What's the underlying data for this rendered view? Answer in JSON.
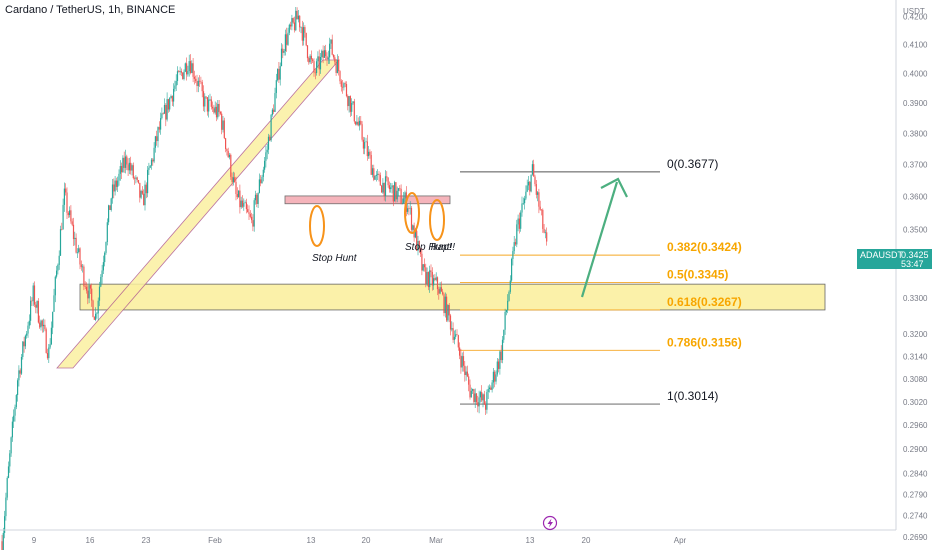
{
  "header": {
    "title": "Cardano / TetherUS, 1h, BINANCE"
  },
  "price_axis": {
    "currency": "USDT"
  },
  "last_price": {
    "symbol": "ADAUSDT",
    "value": "0.3425",
    "countdown": "53:47"
  },
  "colors": {
    "up": "#26a69a",
    "down": "#ef5350",
    "fib_label": "#f7a600",
    "fib_line": "#f5a623",
    "zone_fill": "#fbf0a0",
    "supply_fill": "#f4a7b0",
    "circle": "#f7931a",
    "arrow": "#4caf80"
  },
  "chart_data": {
    "type": "candlestick",
    "title": "Cardano / TetherUS, 1h, BINANCE",
    "y_unit": "USDT",
    "y_scale": "log",
    "ylim": [
      0.266,
      0.426
    ],
    "y_ticks": [
      "0.4200",
      "0.4100",
      "0.4000",
      "0.3900",
      "0.3800",
      "0.3700",
      "0.3600",
      "0.3500",
      "0.3400",
      "0.3300",
      "0.3200",
      "0.3140",
      "0.3080",
      "0.3020",
      "0.2960",
      "0.2900",
      "0.2840",
      "0.2790",
      "0.2740",
      "0.2690"
    ],
    "x_ticks": [
      "9",
      "16",
      "23",
      "Feb",
      "13",
      "20",
      "Mar",
      "13",
      "20",
      "Apr"
    ],
    "price_path": [
      [
        "9",
        0.268
      ],
      [
        "9",
        0.308
      ],
      [
        "9",
        0.331
      ],
      [
        "9",
        0.315
      ],
      [
        "16",
        0.36
      ],
      [
        "16",
        0.34
      ],
      [
        "16",
        0.325
      ],
      [
        "23",
        0.36
      ],
      [
        "23",
        0.372
      ],
      [
        "23",
        0.358
      ],
      [
        "23",
        0.38
      ],
      [
        "Feb",
        0.395
      ],
      [
        "Feb",
        0.405
      ],
      [
        "Feb",
        0.39
      ],
      [
        "Feb",
        0.386
      ],
      [
        "13",
        0.36
      ],
      [
        "13",
        0.352
      ],
      [
        "13",
        0.375
      ],
      [
        "13",
        0.41
      ],
      [
        "13",
        0.42
      ],
      [
        "20",
        0.4
      ],
      [
        "20",
        0.41
      ],
      [
        "20",
        0.395
      ],
      [
        "20",
        0.38
      ],
      [
        "20",
        0.365
      ],
      [
        "Mar",
        0.362
      ],
      [
        "Mar",
        0.358
      ],
      [
        "Mar",
        0.337
      ],
      [
        "Mar",
        0.333
      ],
      [
        "Mar",
        0.32
      ],
      [
        "13",
        0.305
      ],
      [
        "13",
        0.3014
      ],
      [
        "13",
        0.315
      ],
      [
        "13",
        0.35
      ],
      [
        "13",
        0.3677
      ],
      [
        "13",
        0.3425
      ]
    ],
    "fibonacci": [
      {
        "ratio": "0",
        "price": 0.3677,
        "label": "0(0.3677)"
      },
      {
        "ratio": "0.382",
        "price": 0.3424,
        "label": "0.382(0.3424)"
      },
      {
        "ratio": "0.5",
        "price": 0.3345,
        "label": "0.5(0.3345)"
      },
      {
        "ratio": "0.618",
        "price": 0.3267,
        "label": "0.618(0.3267)"
      },
      {
        "ratio": "0.786",
        "price": 0.3156,
        "label": "0.786(0.3156)"
      },
      {
        "ratio": "1",
        "price": 0.3014,
        "label": "1(0.3014)"
      }
    ],
    "zones": [
      {
        "kind": "support",
        "low": 0.3267,
        "high": 0.334
      },
      {
        "kind": "resistance",
        "low": 0.3578,
        "high": 0.3602
      }
    ],
    "annotations": [
      {
        "text": "Stop Hunt",
        "x": "13"
      },
      {
        "text": "Stop Hunt!!",
        "x": "Mar"
      },
      {
        "text": "Trap!",
        "x": "Mar"
      }
    ],
    "last_price": 0.3425,
    "grid": false,
    "legend": "none"
  }
}
